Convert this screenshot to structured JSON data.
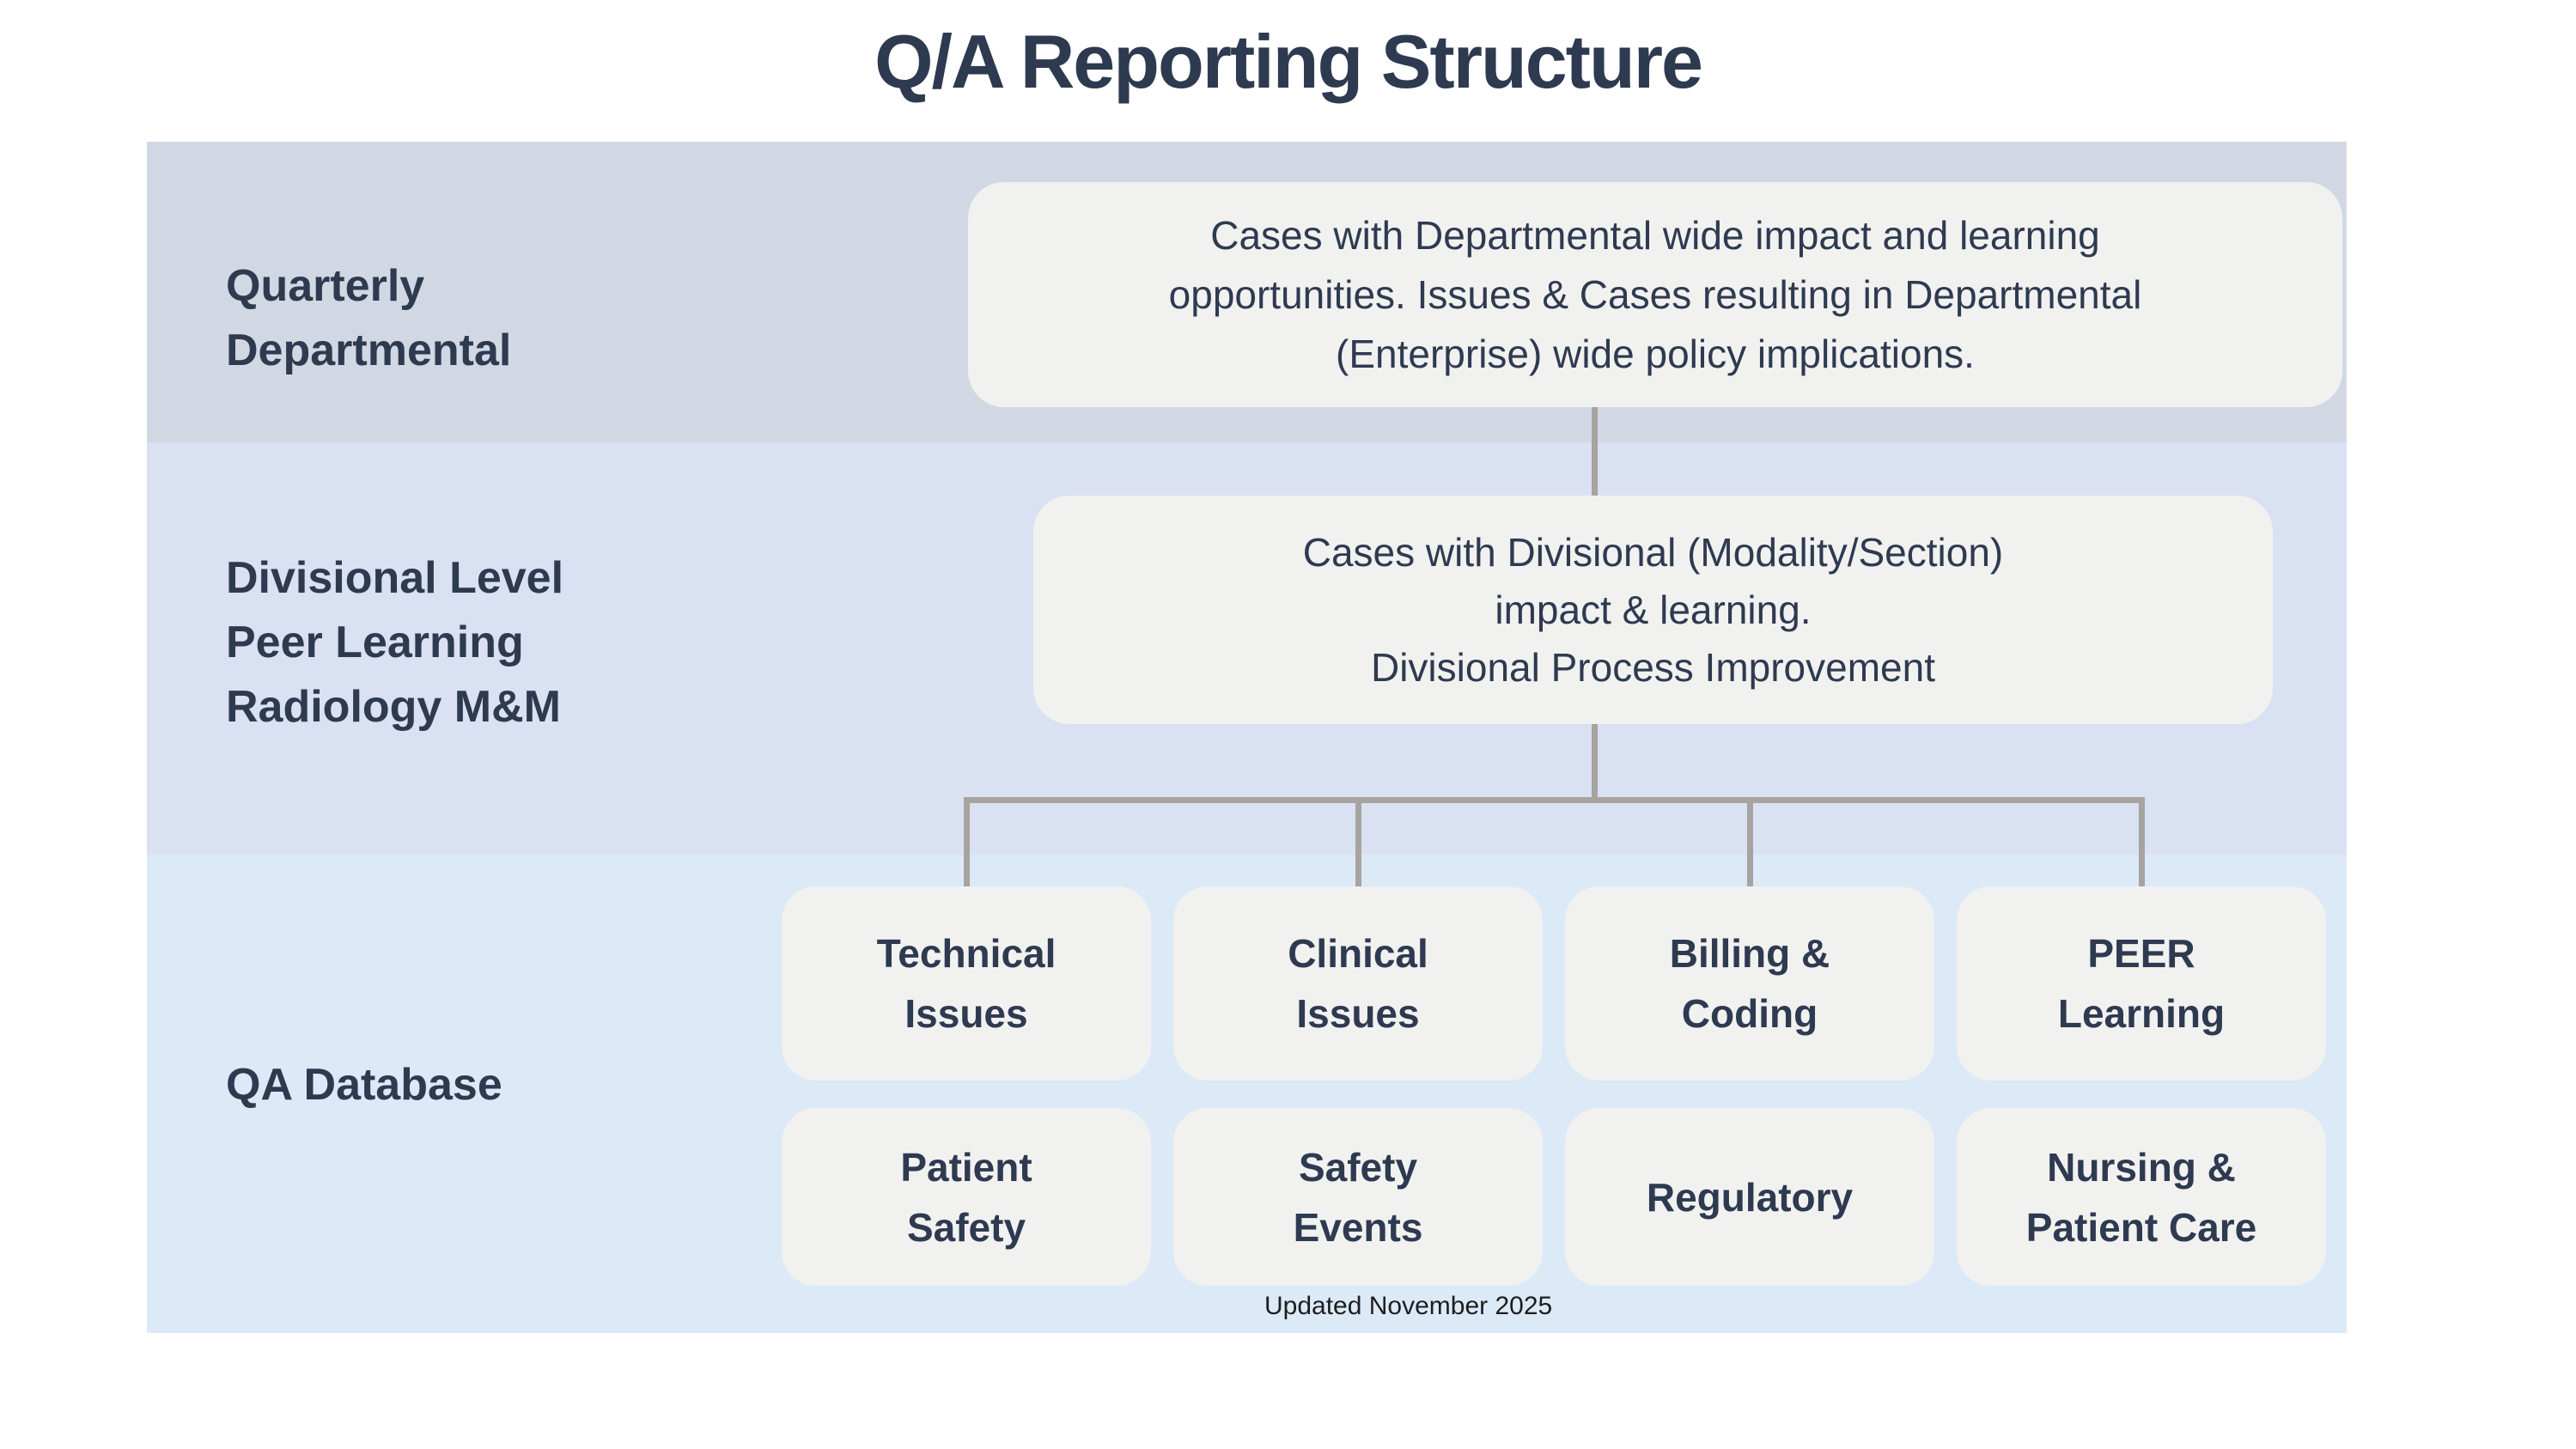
{
  "title": "Q/A Reporting Structure",
  "colors": {
    "page_bg": "#ffffff",
    "band1_bg": "#d2d8e3",
    "band2_bg": "#d9e1f2",
    "band3_bg": "#dce9f7",
    "box_bg": "#f1f1f0",
    "connector": "#a7a3a0",
    "heading_text": "#2e3a50",
    "footer_text": "#1d1d1d"
  },
  "band1": {
    "label": "Quarterly\nDepartmental",
    "box_text": "Cases with Departmental wide impact and learning\nopportunities. Issues & Cases resulting in Departmental\n(Enterprise) wide policy implications."
  },
  "band2": {
    "label": "Divisional Level\nPeer Learning\nRadiology M&M",
    "box_text": "Cases with Divisional (Modality/Section)\nimpact & learning.\nDivisional Process Improvement"
  },
  "band3": {
    "label": "QA Database",
    "boxes": [
      {
        "label": "Technical\nIssues"
      },
      {
        "label": "Clinical\nIssues"
      },
      {
        "label": "Billing &\nCoding"
      },
      {
        "label": "PEER\nLearning"
      },
      {
        "label": "Patient\nSafety"
      },
      {
        "label": "Safety\nEvents"
      },
      {
        "label": "Regulatory"
      },
      {
        "label": "Nursing &\nPatient Care"
      }
    ]
  },
  "footer": "Updated November 2025"
}
